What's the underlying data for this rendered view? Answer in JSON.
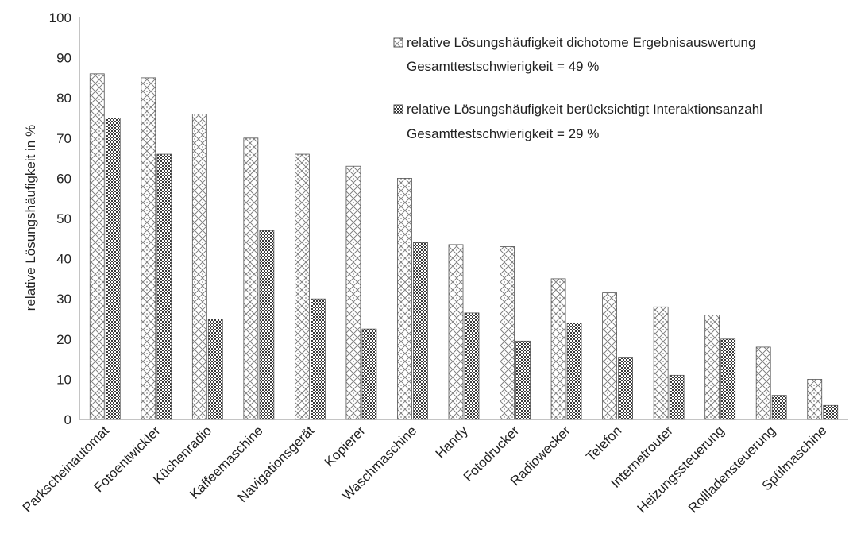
{
  "chart_data": {
    "type": "bar",
    "title": "",
    "xlabel": "",
    "ylabel": "relative Lösungshäufigkeit in %",
    "ylim": [
      0,
      100
    ],
    "yticks": [
      0,
      10,
      20,
      30,
      40,
      50,
      60,
      70,
      80,
      90,
      100
    ],
    "grid": false,
    "legend_position": "top-right",
    "categories": [
      "Parkscheinautomat",
      "Fotoentwickler",
      "Küchenradio",
      "Kaffeemaschine",
      "Navigationsgerät",
      "Kopierer",
      "Waschmaschine",
      "Handy",
      "Fotodrucker",
      "Radiowecker",
      "Telefon",
      "Internetrouter",
      "Heizungssteuerung",
      "Rollladensteuerung",
      "Spülmaschine"
    ],
    "series": [
      {
        "name": "relative Lösungshäufigkeit dichotome Ergebnisauswertung",
        "note": "Gesamttestschwierigkeit = 49 %",
        "pattern": "light-diamond",
        "values": [
          86,
          85,
          76,
          70,
          66,
          63,
          60,
          43.5,
          43,
          35,
          31.5,
          28,
          26,
          18,
          10
        ]
      },
      {
        "name": "relative Lösungshäufigkeit berücksichtigt Interaktionsanzahl",
        "note": "Gesamttestschwierigkeit = 29 %",
        "pattern": "dark-check",
        "values": [
          75,
          66,
          25,
          47,
          30,
          22.5,
          44,
          26.5,
          19.5,
          24,
          15.5,
          11,
          20,
          6,
          3.5
        ]
      }
    ]
  }
}
